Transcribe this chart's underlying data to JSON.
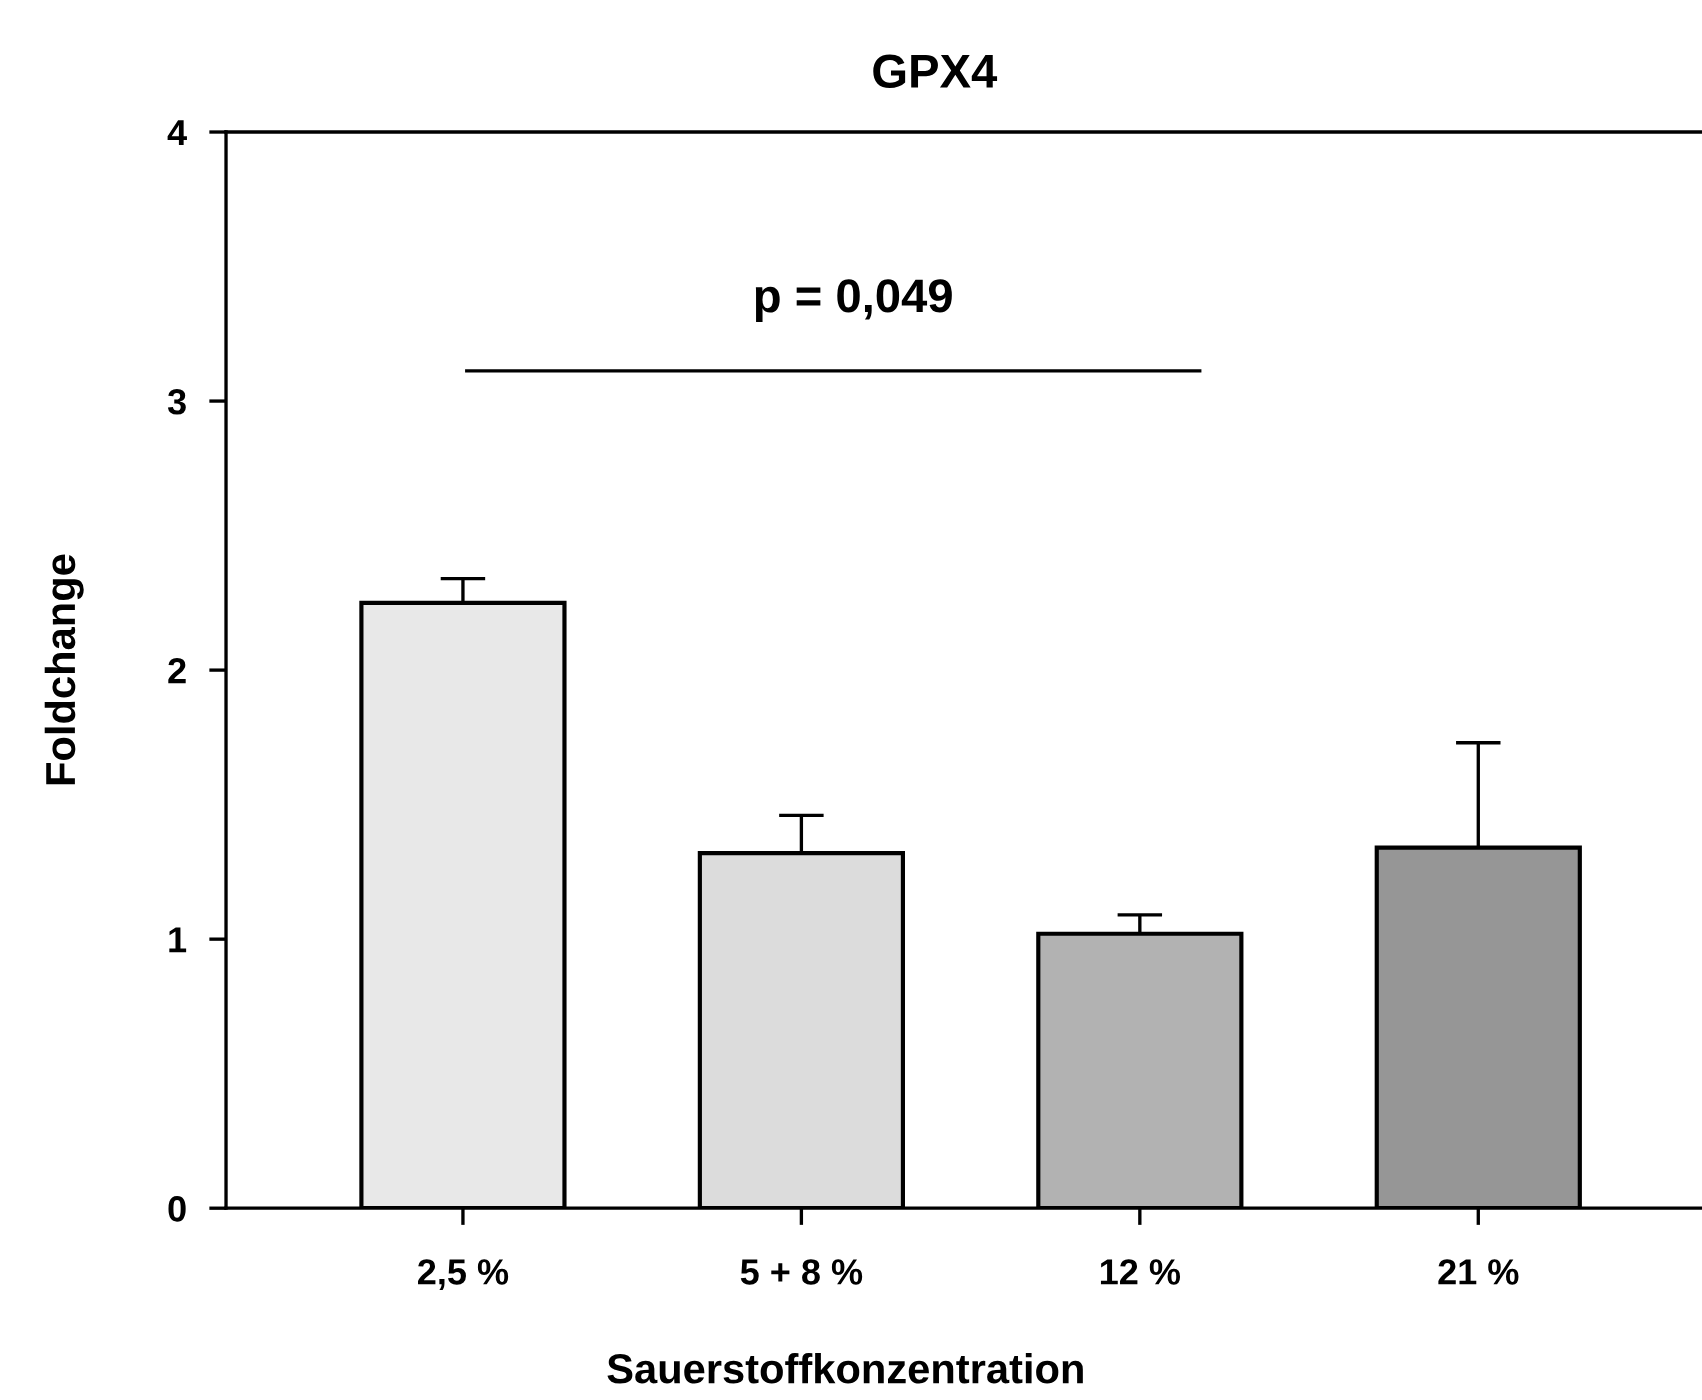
{
  "chart_data": {
    "type": "bar",
    "title": "GPX4",
    "xlabel": "Sauerstoffkonzentration",
    "ylabel": "Foldchange",
    "categories": [
      "2,5 %",
      "5 + 8 %",
      "12 %",
      "21 %"
    ],
    "values": [
      2.25,
      1.32,
      1.02,
      1.34
    ],
    "errors": [
      [
        2.25,
        2.34
      ],
      [
        1.32,
        1.46
      ],
      [
        1.02,
        1.09
      ],
      [
        1.34,
        1.73
      ]
    ],
    "colors": [
      "#e8e8e8",
      "#dcdcdc",
      "#b2b2b2",
      "#969696"
    ],
    "ylim": [
      0,
      4
    ],
    "yticks": [
      0,
      1,
      2,
      3,
      4
    ],
    "grid": false,
    "annotations": [
      "p = 0,049"
    ]
  }
}
